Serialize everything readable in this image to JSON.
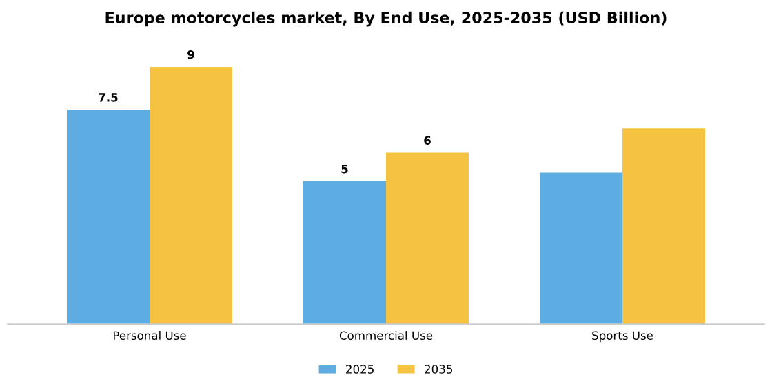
{
  "chart_data": {
    "type": "bar",
    "title": "Europe motorcycles market, By End Use, 2025-2035 (USD Billion)",
    "categories": [
      "Personal Use",
      "Commercial Use",
      "Sports Use"
    ],
    "series": [
      {
        "name": "2025",
        "color": "#5dade2",
        "values": [
          7.5,
          5,
          5.3
        ],
        "value_labels": [
          "7.5",
          "5",
          null
        ]
      },
      {
        "name": "2035",
        "color": "#f5c242",
        "values": [
          9,
          6,
          6.85
        ],
        "value_labels": [
          "9",
          "6",
          null
        ]
      }
    ],
    "legend": "bottom",
    "grid": false,
    "tick_labels": "x"
  }
}
